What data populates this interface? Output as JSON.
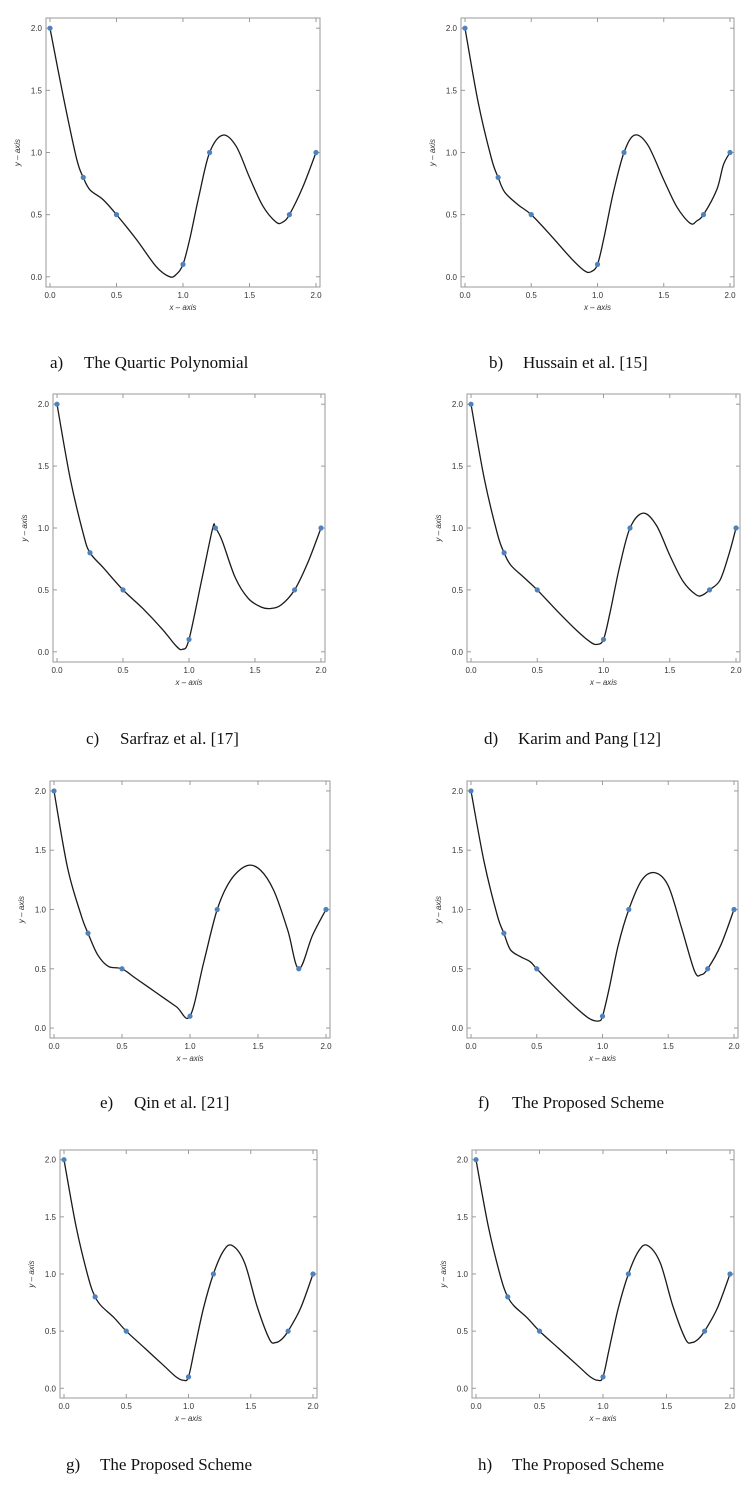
{
  "chart_data": [
    {
      "type": "line",
      "caption_letter": "a)",
      "caption": "The Quartic Polynomial",
      "xlabel": "x – axis",
      "ylabel": "y – axis",
      "xlim": [
        0,
        2
      ],
      "ylim": [
        -0.05,
        2.05
      ],
      "xticks": [
        "0.0",
        "0.5",
        "1.0",
        "1.5",
        "2.0"
      ],
      "yticks": [
        "0.0",
        "0.5",
        "1.0",
        "1.5",
        "2.0"
      ],
      "points": [
        [
          0,
          2
        ],
        [
          0.25,
          0.8
        ],
        [
          0.5,
          0.5
        ],
        [
          1,
          0.1
        ],
        [
          1.2,
          1
        ],
        [
          1.8,
          0.5
        ],
        [
          2,
          1
        ]
      ],
      "curve": [
        [
          0,
          2
        ],
        [
          0.1,
          1.45
        ],
        [
          0.2,
          0.95
        ],
        [
          0.25,
          0.8
        ],
        [
          0.3,
          0.7
        ],
        [
          0.4,
          0.62
        ],
        [
          0.5,
          0.5
        ],
        [
          0.65,
          0.3
        ],
        [
          0.8,
          0.08
        ],
        [
          0.9,
          0.0
        ],
        [
          0.95,
          0.02
        ],
        [
          1,
          0.1
        ],
        [
          1.05,
          0.3
        ],
        [
          1.12,
          0.65
        ],
        [
          1.2,
          1
        ],
        [
          1.3,
          1.14
        ],
        [
          1.4,
          1.05
        ],
        [
          1.5,
          0.8
        ],
        [
          1.6,
          0.57
        ],
        [
          1.7,
          0.44
        ],
        [
          1.75,
          0.44
        ],
        [
          1.8,
          0.5
        ],
        [
          1.9,
          0.72
        ],
        [
          2,
          1
        ]
      ]
    },
    {
      "type": "line",
      "caption_letter": "b)",
      "caption": "Hussain et al. [15]",
      "xlabel": "x – axis",
      "ylabel": "y – axis",
      "xlim": [
        0,
        2
      ],
      "ylim": [
        -0.05,
        2.05
      ],
      "xticks": [
        "0.0",
        "0.5",
        "1.0",
        "1.5",
        "2.0"
      ],
      "yticks": [
        "0.0",
        "0.5",
        "1.0",
        "1.5",
        "2.0"
      ],
      "points": [
        [
          0,
          2
        ],
        [
          0.25,
          0.8
        ],
        [
          0.5,
          0.5
        ],
        [
          1,
          0.1
        ],
        [
          1.2,
          1
        ],
        [
          1.8,
          0.5
        ],
        [
          2,
          1
        ]
      ],
      "curve": [
        [
          0,
          2
        ],
        [
          0.1,
          1.4
        ],
        [
          0.2,
          0.95
        ],
        [
          0.25,
          0.8
        ],
        [
          0.3,
          0.68
        ],
        [
          0.4,
          0.58
        ],
        [
          0.5,
          0.5
        ],
        [
          0.65,
          0.33
        ],
        [
          0.8,
          0.15
        ],
        [
          0.9,
          0.05
        ],
        [
          0.95,
          0.04
        ],
        [
          1,
          0.1
        ],
        [
          1.05,
          0.32
        ],
        [
          1.12,
          0.68
        ],
        [
          1.2,
          1
        ],
        [
          1.28,
          1.14
        ],
        [
          1.38,
          1.06
        ],
        [
          1.5,
          0.78
        ],
        [
          1.6,
          0.56
        ],
        [
          1.7,
          0.43
        ],
        [
          1.75,
          0.45
        ],
        [
          1.8,
          0.5
        ],
        [
          1.9,
          0.7
        ],
        [
          1.95,
          0.9
        ],
        [
          2,
          1
        ]
      ]
    },
    {
      "type": "line",
      "caption_letter": "c)",
      "caption": "Sarfraz et al. [17]",
      "xlabel": "x – axis",
      "ylabel": "y – axis",
      "xlim": [
        0,
        2
      ],
      "ylim": [
        -0.05,
        2.05
      ],
      "xticks": [
        "0.0",
        "0.5",
        "1.0",
        "1.5",
        "2.0"
      ],
      "yticks": [
        "0.0",
        "0.5",
        "1.0",
        "1.5",
        "2.0"
      ],
      "points": [
        [
          0,
          2
        ],
        [
          0.25,
          0.8
        ],
        [
          0.5,
          0.5
        ],
        [
          1,
          0.1
        ],
        [
          1.2,
          1
        ],
        [
          1.8,
          0.5
        ],
        [
          2,
          1
        ]
      ],
      "curve": [
        [
          0,
          2
        ],
        [
          0.1,
          1.4
        ],
        [
          0.2,
          0.95
        ],
        [
          0.25,
          0.8
        ],
        [
          0.35,
          0.68
        ],
        [
          0.5,
          0.5
        ],
        [
          0.65,
          0.35
        ],
        [
          0.8,
          0.18
        ],
        [
          0.9,
          0.05
        ],
        [
          0.95,
          0.02
        ],
        [
          1,
          0.1
        ],
        [
          1.1,
          0.6
        ],
        [
          1.18,
          1.0
        ],
        [
          1.2,
          1
        ],
        [
          1.25,
          0.9
        ],
        [
          1.35,
          0.6
        ],
        [
          1.45,
          0.43
        ],
        [
          1.55,
          0.36
        ],
        [
          1.62,
          0.35
        ],
        [
          1.7,
          0.38
        ],
        [
          1.8,
          0.5
        ],
        [
          1.9,
          0.72
        ],
        [
          2,
          1
        ]
      ]
    },
    {
      "type": "line",
      "caption_letter": "d)",
      "caption": "Karim and Pang [12]",
      "xlabel": "x – axis",
      "ylabel": "y – axis",
      "xlim": [
        0,
        2
      ],
      "ylim": [
        -0.05,
        2.05
      ],
      "xticks": [
        "0.0",
        "0.5",
        "1.0",
        "1.5",
        "2.0"
      ],
      "yticks": [
        "0.0",
        "0.5",
        "1.0",
        "1.5",
        "2.0"
      ],
      "points": [
        [
          0,
          2
        ],
        [
          0.25,
          0.8
        ],
        [
          0.5,
          0.5
        ],
        [
          1,
          0.1
        ],
        [
          1.2,
          1
        ],
        [
          1.8,
          0.5
        ],
        [
          2,
          1
        ]
      ],
      "curve": [
        [
          0,
          2
        ],
        [
          0.1,
          1.4
        ],
        [
          0.2,
          0.95
        ],
        [
          0.25,
          0.8
        ],
        [
          0.3,
          0.7
        ],
        [
          0.4,
          0.6
        ],
        [
          0.5,
          0.5
        ],
        [
          0.65,
          0.33
        ],
        [
          0.8,
          0.17
        ],
        [
          0.9,
          0.08
        ],
        [
          0.95,
          0.06
        ],
        [
          1,
          0.1
        ],
        [
          1.05,
          0.32
        ],
        [
          1.12,
          0.68
        ],
        [
          1.2,
          1
        ],
        [
          1.3,
          1.12
        ],
        [
          1.4,
          1.02
        ],
        [
          1.5,
          0.78
        ],
        [
          1.6,
          0.57
        ],
        [
          1.7,
          0.46
        ],
        [
          1.75,
          0.46
        ],
        [
          1.8,
          0.5
        ],
        [
          1.88,
          0.58
        ],
        [
          1.95,
          0.8
        ],
        [
          2,
          1
        ]
      ]
    },
    {
      "type": "line",
      "caption_letter": "e)",
      "caption": "Qin et al. [21]",
      "xlabel": "x – axis",
      "ylabel": "y – axis",
      "xlim": [
        0,
        2
      ],
      "ylim": [
        -0.05,
        2.05
      ],
      "xticks": [
        "0.0",
        "0.5",
        "1.0",
        "1.5",
        "2.0"
      ],
      "yticks": [
        "0.0",
        "0.5",
        "1.0",
        "1.5",
        "2.0"
      ],
      "points": [
        [
          0,
          2
        ],
        [
          0.25,
          0.8
        ],
        [
          0.5,
          0.5
        ],
        [
          1,
          0.1
        ],
        [
          1.2,
          1
        ],
        [
          1.8,
          0.5
        ],
        [
          2,
          1
        ]
      ],
      "curve": [
        [
          0,
          2
        ],
        [
          0.1,
          1.35
        ],
        [
          0.2,
          0.95
        ],
        [
          0.25,
          0.8
        ],
        [
          0.32,
          0.62
        ],
        [
          0.4,
          0.52
        ],
        [
          0.5,
          0.5
        ],
        [
          0.6,
          0.42
        ],
        [
          0.75,
          0.3
        ],
        [
          0.9,
          0.18
        ],
        [
          1,
          0.1
        ],
        [
          1.1,
          0.55
        ],
        [
          1.2,
          1
        ],
        [
          1.3,
          1.25
        ],
        [
          1.42,
          1.37
        ],
        [
          1.52,
          1.33
        ],
        [
          1.62,
          1.15
        ],
        [
          1.72,
          0.82
        ],
        [
          1.8,
          0.5
        ],
        [
          1.9,
          0.78
        ],
        [
          2,
          1
        ]
      ]
    },
    {
      "type": "line",
      "caption_letter": "f)",
      "caption": "The Proposed Scheme",
      "xlabel": "x – axis",
      "ylabel": "y – axis",
      "xlim": [
        0,
        2
      ],
      "ylim": [
        -0.05,
        2.05
      ],
      "xticks": [
        "0.0",
        "0.5",
        "1.0",
        "1.5",
        "2.0"
      ],
      "yticks": [
        "0.0",
        "0.5",
        "1.0",
        "1.5",
        "2.0"
      ],
      "points": [
        [
          0,
          2
        ],
        [
          0.25,
          0.8
        ],
        [
          0.5,
          0.5
        ],
        [
          1,
          0.1
        ],
        [
          1.2,
          1
        ],
        [
          1.8,
          0.5
        ],
        [
          2,
          1
        ]
      ],
      "curve": [
        [
          0,
          2
        ],
        [
          0.1,
          1.4
        ],
        [
          0.2,
          0.95
        ],
        [
          0.25,
          0.8
        ],
        [
          0.3,
          0.66
        ],
        [
          0.38,
          0.6
        ],
        [
          0.45,
          0.56
        ],
        [
          0.5,
          0.5
        ],
        [
          0.65,
          0.33
        ],
        [
          0.8,
          0.17
        ],
        [
          0.9,
          0.08
        ],
        [
          0.97,
          0.06
        ],
        [
          1,
          0.1
        ],
        [
          1.05,
          0.33
        ],
        [
          1.12,
          0.7
        ],
        [
          1.2,
          1
        ],
        [
          1.3,
          1.25
        ],
        [
          1.4,
          1.31
        ],
        [
          1.5,
          1.2
        ],
        [
          1.6,
          0.85
        ],
        [
          1.7,
          0.48
        ],
        [
          1.75,
          0.45
        ],
        [
          1.8,
          0.5
        ],
        [
          1.9,
          0.7
        ],
        [
          2,
          1
        ]
      ]
    },
    {
      "type": "line",
      "caption_letter": "g)",
      "caption": "The Proposed Scheme",
      "xlabel": "x – axis",
      "ylabel": "y – axis",
      "xlim": [
        0,
        2
      ],
      "ylim": [
        -0.05,
        2.05
      ],
      "xticks": [
        "0.0",
        "0.5",
        "1.0",
        "1.5",
        "2.0"
      ],
      "yticks": [
        "0.0",
        "0.5",
        "1.0",
        "1.5",
        "2.0"
      ],
      "points": [
        [
          0,
          2
        ],
        [
          0.25,
          0.8
        ],
        [
          0.5,
          0.5
        ],
        [
          1,
          0.1
        ],
        [
          1.2,
          1
        ],
        [
          1.8,
          0.5
        ],
        [
          2,
          1
        ]
      ],
      "curve": [
        [
          0,
          2
        ],
        [
          0.1,
          1.4
        ],
        [
          0.2,
          0.95
        ],
        [
          0.25,
          0.8
        ],
        [
          0.3,
          0.72
        ],
        [
          0.4,
          0.62
        ],
        [
          0.5,
          0.5
        ],
        [
          0.65,
          0.35
        ],
        [
          0.8,
          0.2
        ],
        [
          0.9,
          0.1
        ],
        [
          0.96,
          0.07
        ],
        [
          1,
          0.1
        ],
        [
          1.05,
          0.35
        ],
        [
          1.12,
          0.7
        ],
        [
          1.2,
          1
        ],
        [
          1.28,
          1.2
        ],
        [
          1.35,
          1.25
        ],
        [
          1.45,
          1.1
        ],
        [
          1.55,
          0.72
        ],
        [
          1.65,
          0.43
        ],
        [
          1.7,
          0.4
        ],
        [
          1.75,
          0.43
        ],
        [
          1.8,
          0.5
        ],
        [
          1.9,
          0.7
        ],
        [
          2,
          1
        ]
      ]
    },
    {
      "type": "line",
      "caption_letter": "h)",
      "caption": "The Proposed Scheme",
      "xlabel": "x – axis",
      "ylabel": "y – axis",
      "xlim": [
        0,
        2
      ],
      "ylim": [
        -0.05,
        2.05
      ],
      "xticks": [
        "0.0",
        "0.5",
        "1.0",
        "1.5",
        "2.0"
      ],
      "yticks": [
        "0.0",
        "0.5",
        "1.0",
        "1.5",
        "2.0"
      ],
      "points": [
        [
          0,
          2
        ],
        [
          0.25,
          0.8
        ],
        [
          0.5,
          0.5
        ],
        [
          1,
          0.1
        ],
        [
          1.2,
          1
        ],
        [
          1.8,
          0.5
        ],
        [
          2,
          1
        ]
      ],
      "curve": [
        [
          0,
          2
        ],
        [
          0.1,
          1.4
        ],
        [
          0.2,
          0.95
        ],
        [
          0.25,
          0.8
        ],
        [
          0.3,
          0.72
        ],
        [
          0.4,
          0.62
        ],
        [
          0.5,
          0.5
        ],
        [
          0.65,
          0.35
        ],
        [
          0.8,
          0.2
        ],
        [
          0.9,
          0.1
        ],
        [
          0.96,
          0.07
        ],
        [
          1,
          0.1
        ],
        [
          1.05,
          0.35
        ],
        [
          1.12,
          0.7
        ],
        [
          1.2,
          1
        ],
        [
          1.28,
          1.2
        ],
        [
          1.35,
          1.25
        ],
        [
          1.45,
          1.1
        ],
        [
          1.55,
          0.72
        ],
        [
          1.65,
          0.43
        ],
        [
          1.7,
          0.4
        ],
        [
          1.75,
          0.43
        ],
        [
          1.8,
          0.5
        ],
        [
          1.9,
          0.7
        ],
        [
          2,
          1
        ]
      ]
    }
  ],
  "colors": {
    "point": "#4f81bd",
    "curve": "#1a1a1a",
    "frame": "#9a9a9a"
  }
}
